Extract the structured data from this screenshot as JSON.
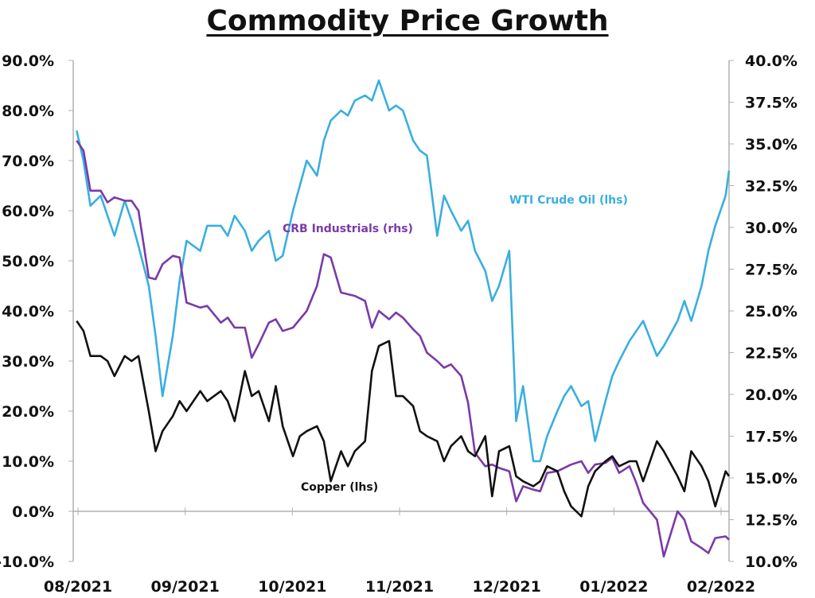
{
  "chart_data": {
    "type": "line",
    "title": "Commodity Price Growth",
    "x_ticks": [
      "08/2021",
      "09/2021",
      "10/2021",
      "11/2021",
      "12/2021",
      "01/2022",
      "02/2022"
    ],
    "x_range": [
      "2021-08-01",
      "2022-02-08"
    ],
    "y_left": {
      "min": -10,
      "max": 90,
      "ticks": [
        "-10.0%",
        "0.0%",
        "10.0%",
        "20.0%",
        "30.0%",
        "40.0%",
        "50.0%",
        "60.0%",
        "70.0%",
        "80.0%",
        "90.0%"
      ]
    },
    "y_right": {
      "min": 10,
      "max": 40,
      "ticks": [
        "10.0%",
        "12.5%",
        "15.0%",
        "17.5%",
        "20.0%",
        "22.5%",
        "25.0%",
        "27.5%",
        "30.0%",
        "32.5%",
        "35.0%",
        "37.5%",
        "40.0%"
      ]
    },
    "grid": false,
    "series": [
      {
        "name": "WTI Crude Oil (lhs)",
        "axis": "left",
        "color": "#3aaee0",
        "x": [
          "2021-08-02",
          "2021-08-04",
          "2021-08-06",
          "2021-08-09",
          "2021-08-11",
          "2021-08-13",
          "2021-08-16",
          "2021-08-18",
          "2021-08-20",
          "2021-08-23",
          "2021-08-25",
          "2021-08-27",
          "2021-08-30",
          "2021-09-01",
          "2021-09-03",
          "2021-09-07",
          "2021-09-09",
          "2021-09-13",
          "2021-09-15",
          "2021-09-17",
          "2021-09-20",
          "2021-09-22",
          "2021-09-24",
          "2021-09-27",
          "2021-09-29",
          "2021-10-01",
          "2021-10-04",
          "2021-10-06",
          "2021-10-08",
          "2021-10-11",
          "2021-10-13",
          "2021-10-15",
          "2021-10-18",
          "2021-10-20",
          "2021-10-22",
          "2021-10-25",
          "2021-10-27",
          "2021-10-29",
          "2021-11-01",
          "2021-11-03",
          "2021-11-05",
          "2021-11-08",
          "2021-11-10",
          "2021-11-12",
          "2021-11-15",
          "2021-11-17",
          "2021-11-19",
          "2021-11-22",
          "2021-11-24",
          "2021-11-26",
          "2021-11-29",
          "2021-12-01",
          "2021-12-03",
          "2021-12-06",
          "2021-12-08",
          "2021-12-10",
          "2021-12-13",
          "2021-12-15",
          "2021-12-17",
          "2021-12-20",
          "2021-12-22",
          "2021-12-24",
          "2021-12-27",
          "2021-12-29",
          "2021-12-31",
          "2022-01-03",
          "2022-01-05",
          "2022-01-07",
          "2022-01-10",
          "2022-01-12",
          "2022-01-14",
          "2022-01-18",
          "2022-01-20",
          "2022-01-24",
          "2022-01-26",
          "2022-01-28",
          "2022-01-31",
          "2022-02-02",
          "2022-02-04",
          "2022-02-07",
          "2022-02-08"
        ],
        "values": [
          76,
          70,
          61,
          63,
          59,
          55,
          62,
          58,
          53,
          45,
          35,
          23,
          35,
          46,
          54,
          52,
          57,
          57,
          55,
          59,
          56,
          52,
          54,
          56,
          50,
          51,
          60,
          65,
          70,
          67,
          74,
          78,
          80,
          79,
          82,
          83,
          82,
          86,
          80,
          81,
          80,
          74,
          72,
          71,
          55,
          63,
          60,
          56,
          58,
          52,
          48,
          42,
          45,
          52,
          18,
          25,
          10,
          10,
          15,
          20,
          23,
          25,
          21,
          22,
          14,
          22,
          27,
          30,
          34,
          36,
          38,
          31,
          33,
          38,
          42,
          38,
          45,
          52,
          57,
          63,
          68
        ]
      },
      {
        "name": "CRB Industrials (rhs)",
        "axis": "right",
        "color": "#7a3aa8",
        "x": [
          "2021-08-02",
          "2021-08-04",
          "2021-08-06",
          "2021-08-09",
          "2021-08-11",
          "2021-08-13",
          "2021-08-16",
          "2021-08-18",
          "2021-08-20",
          "2021-08-23",
          "2021-08-25",
          "2021-08-27",
          "2021-08-30",
          "2021-09-01",
          "2021-09-03",
          "2021-09-07",
          "2021-09-09",
          "2021-09-13",
          "2021-09-15",
          "2021-09-17",
          "2021-09-20",
          "2021-09-22",
          "2021-09-24",
          "2021-09-27",
          "2021-09-29",
          "2021-10-01",
          "2021-10-04",
          "2021-10-06",
          "2021-10-08",
          "2021-10-11",
          "2021-10-13",
          "2021-10-15",
          "2021-10-18",
          "2021-10-20",
          "2021-10-22",
          "2021-10-25",
          "2021-10-27",
          "2021-10-29",
          "2021-11-01",
          "2021-11-03",
          "2021-11-05",
          "2021-11-08",
          "2021-11-10",
          "2021-11-12",
          "2021-11-15",
          "2021-11-17",
          "2021-11-19",
          "2021-11-22",
          "2021-11-24",
          "2021-11-26",
          "2021-11-29",
          "2021-12-01",
          "2021-12-03",
          "2021-12-06",
          "2021-12-08",
          "2021-12-10",
          "2021-12-13",
          "2021-12-15",
          "2021-12-17",
          "2021-12-20",
          "2021-12-22",
          "2021-12-24",
          "2021-12-27",
          "2021-12-29",
          "2021-12-31",
          "2022-01-03",
          "2022-01-05",
          "2022-01-07",
          "2022-01-10",
          "2022-01-12",
          "2022-01-14",
          "2022-01-18",
          "2022-01-20",
          "2022-01-24",
          "2022-01-26",
          "2022-01-28",
          "2022-01-31",
          "2022-02-02",
          "2022-02-04",
          "2022-02-07",
          "2022-02-08"
        ],
        "values": [
          35.2,
          34.6,
          32.2,
          32.2,
          31.5,
          31.8,
          31.6,
          31.6,
          31.0,
          27.0,
          26.9,
          27.8,
          28.3,
          28.2,
          25.5,
          25.2,
          25.3,
          24.3,
          24.6,
          24.0,
          24.0,
          22.2,
          23.0,
          24.3,
          24.5,
          23.8,
          24.0,
          24.5,
          25.0,
          26.5,
          28.4,
          28.2,
          26.1,
          26.0,
          25.9,
          25.6,
          24.0,
          25.0,
          24.5,
          24.9,
          24.6,
          23.9,
          23.5,
          22.5,
          22.0,
          21.6,
          21.8,
          21.1,
          19.5,
          16.5,
          15.7,
          15.8,
          15.6,
          15.4,
          13.6,
          14.5,
          14.3,
          14.2,
          15.3,
          15.4,
          15.6,
          15.8,
          16.0,
          15.3,
          15.8,
          15.9,
          16.2,
          15.3,
          15.7,
          14.7,
          13.5,
          12.5,
          10.3,
          13.0,
          12.5,
          11.2,
          10.8,
          10.5,
          11.4,
          11.5,
          11.3
        ]
      },
      {
        "name": "Copper (lhs)",
        "axis": "left",
        "color": "#111111",
        "x": [
          "2021-08-02",
          "2021-08-04",
          "2021-08-06",
          "2021-08-09",
          "2021-08-11",
          "2021-08-13",
          "2021-08-16",
          "2021-08-18",
          "2021-08-20",
          "2021-08-23",
          "2021-08-25",
          "2021-08-27",
          "2021-08-30",
          "2021-09-01",
          "2021-09-03",
          "2021-09-07",
          "2021-09-09",
          "2021-09-13",
          "2021-09-15",
          "2021-09-17",
          "2021-09-20",
          "2021-09-22",
          "2021-09-24",
          "2021-09-27",
          "2021-09-29",
          "2021-10-01",
          "2021-10-04",
          "2021-10-06",
          "2021-10-08",
          "2021-10-11",
          "2021-10-13",
          "2021-10-15",
          "2021-10-18",
          "2021-10-20",
          "2021-10-22",
          "2021-10-25",
          "2021-10-27",
          "2021-10-29",
          "2021-11-01",
          "2021-11-03",
          "2021-11-05",
          "2021-11-08",
          "2021-11-10",
          "2021-11-12",
          "2021-11-15",
          "2021-11-17",
          "2021-11-19",
          "2021-11-22",
          "2021-11-24",
          "2021-11-26",
          "2021-11-29",
          "2021-12-01",
          "2021-12-03",
          "2021-12-06",
          "2021-12-08",
          "2021-12-10",
          "2021-12-13",
          "2021-12-15",
          "2021-12-17",
          "2021-12-20",
          "2021-12-22",
          "2021-12-24",
          "2021-12-27",
          "2021-12-29",
          "2021-12-31",
          "2022-01-03",
          "2022-01-05",
          "2022-01-07",
          "2022-01-10",
          "2022-01-12",
          "2022-01-14",
          "2022-01-18",
          "2022-01-20",
          "2022-01-24",
          "2022-01-26",
          "2022-01-28",
          "2022-01-31",
          "2022-02-02",
          "2022-02-04",
          "2022-02-07",
          "2022-02-08"
        ],
        "values": [
          38,
          36,
          31,
          31,
          30,
          27,
          31,
          30,
          31,
          20,
          12,
          16,
          19,
          22,
          20,
          24,
          22,
          24,
          22,
          18,
          28,
          23,
          24,
          18,
          25,
          17,
          11,
          15,
          16,
          17,
          14,
          6,
          12,
          9,
          12,
          14,
          28,
          33,
          34,
          23,
          23,
          21,
          16,
          15,
          14,
          10,
          13,
          15,
          12,
          11,
          15,
          3,
          12,
          13,
          7,
          6,
          5,
          6,
          9,
          8,
          4,
          1,
          -1,
          5,
          8,
          10,
          11,
          9,
          10,
          10,
          6,
          14,
          12,
          7,
          4,
          12,
          9,
          6,
          1,
          8,
          7
        ]
      }
    ],
    "annotations": [
      {
        "text": "WTI Crude Oil (lhs)",
        "series": 0
      },
      {
        "text": "CRB Industrials (rhs)",
        "series": 1
      },
      {
        "text": "Copper (lhs)",
        "series": 2
      }
    ]
  }
}
